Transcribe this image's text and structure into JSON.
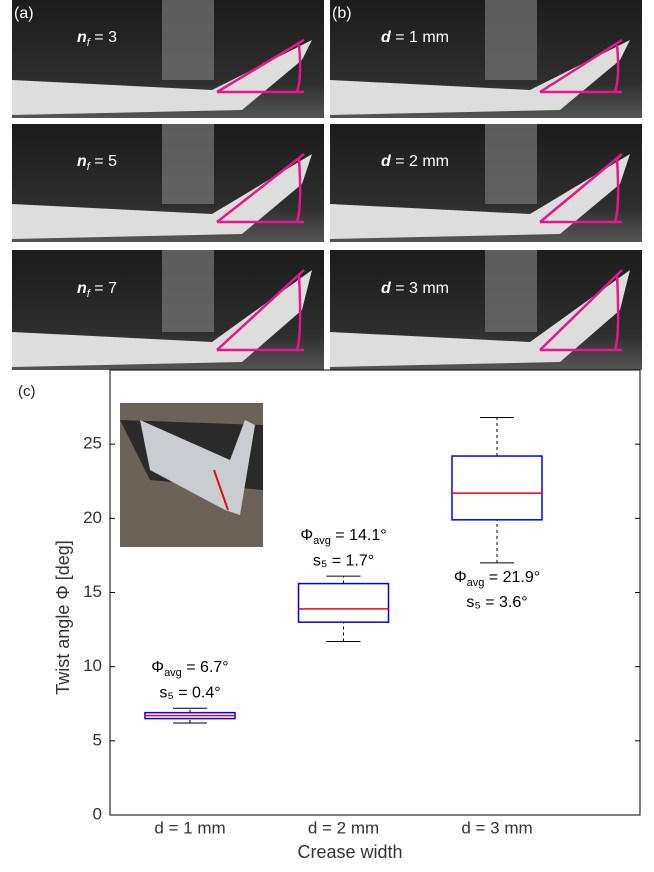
{
  "panels": [
    {
      "label": "(a)",
      "photos": [
        {
          "var": "n",
          "sub": "f",
          "text": " = 3"
        },
        {
          "var": "n",
          "sub": "f",
          "text": " = 5"
        },
        {
          "var": "n",
          "sub": "f",
          "text": " = 7"
        }
      ]
    },
    {
      "label": "(b)",
      "photos": [
        {
          "var": "d",
          "text": " = 1 mm"
        },
        {
          "var": "d",
          "text": " = 2 mm"
        },
        {
          "var": "d",
          "text": " = 3 mm"
        }
      ]
    }
  ],
  "chart_data": {
    "type": "box",
    "panel_label": "(c)",
    "x_label": "Crease width",
    "y_label": "Twist angle Φ [deg]",
    "categories": [
      "d = 1 mm",
      "d = 2 mm",
      "d = 3 mm"
    ],
    "whisker_low": [
      6.2,
      11.7,
      17.0
    ],
    "q1": [
      6.5,
      13.0,
      19.9
    ],
    "median": [
      6.7,
      13.9,
      21.7
    ],
    "q3": [
      6.9,
      15.6,
      24.2
    ],
    "whisker_high": [
      7.2,
      16.1,
      26.8
    ],
    "box_color": "#0000ff",
    "median_color": "#ff0000",
    "ylim": [
      0,
      30
    ],
    "yticks": [
      0,
      5,
      10,
      15,
      20,
      25
    ],
    "annotations": [
      {
        "symbol": "Φ",
        "sub": "avg",
        "text": " = 6.7°",
        "s": "s₅ = 0.4°"
      },
      {
        "symbol": "Φ",
        "sub": "avg",
        "text": " = 14.1°",
        "s": "s₅ = 1.7°"
      },
      {
        "symbol": "Φ",
        "sub": "avg",
        "text": " = 21.9°",
        "s": "s₅ = 3.6°"
      }
    ]
  }
}
